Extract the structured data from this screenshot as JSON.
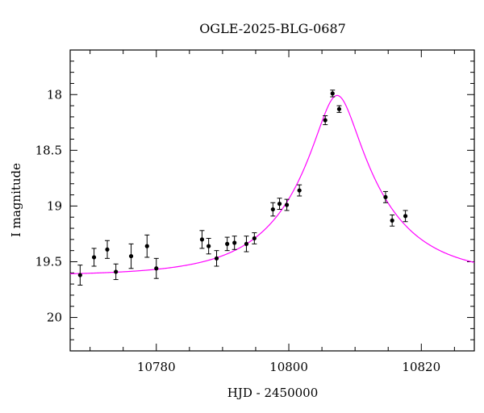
{
  "chart_data": {
    "type": "scatter",
    "title": "OGLE-2025-BLG-0687",
    "xlabel": "HJD - 2450000",
    "ylabel": "I magnitude",
    "xlim": [
      10767,
      10828
    ],
    "ylim": [
      20.3,
      17.6
    ],
    "y_inverted": true,
    "xticks": [
      10780,
      10800,
      10820
    ],
    "yticks": [
      18,
      18.5,
      19,
      19.5,
      20
    ],
    "ytick_labels": [
      "18",
      "18.5",
      "19",
      "19.5",
      "20"
    ],
    "grid": false,
    "series": [
      {
        "kind": "points_with_errorbars",
        "color": "#000000",
        "points": [
          {
            "x": 10768.5,
            "y": 19.62,
            "err": 0.09
          },
          {
            "x": 10770.6,
            "y": 19.46,
            "err": 0.08
          },
          {
            "x": 10772.6,
            "y": 19.39,
            "err": 0.08
          },
          {
            "x": 10773.9,
            "y": 19.59,
            "err": 0.07
          },
          {
            "x": 10776.2,
            "y": 19.45,
            "err": 0.11
          },
          {
            "x": 10778.6,
            "y": 19.36,
            "err": 0.1
          },
          {
            "x": 10780.0,
            "y": 19.56,
            "err": 0.09
          },
          {
            "x": 10786.9,
            "y": 19.3,
            "err": 0.08
          },
          {
            "x": 10787.9,
            "y": 19.36,
            "err": 0.07
          },
          {
            "x": 10789.1,
            "y": 19.47,
            "err": 0.07
          },
          {
            "x": 10790.7,
            "y": 19.34,
            "err": 0.06
          },
          {
            "x": 10791.8,
            "y": 19.33,
            "err": 0.06
          },
          {
            "x": 10793.6,
            "y": 19.34,
            "err": 0.07
          },
          {
            "x": 10794.8,
            "y": 19.29,
            "err": 0.05
          },
          {
            "x": 10797.6,
            "y": 19.03,
            "err": 0.06
          },
          {
            "x": 10798.6,
            "y": 18.98,
            "err": 0.05
          },
          {
            "x": 10799.7,
            "y": 18.99,
            "err": 0.05
          },
          {
            "x": 10801.6,
            "y": 18.86,
            "err": 0.05
          },
          {
            "x": 10805.5,
            "y": 18.23,
            "err": 0.04
          },
          {
            "x": 10806.6,
            "y": 17.99,
            "err": 0.03
          },
          {
            "x": 10807.6,
            "y": 18.13,
            "err": 0.03
          },
          {
            "x": 10814.6,
            "y": 18.92,
            "err": 0.05
          },
          {
            "x": 10815.6,
            "y": 19.13,
            "err": 0.05
          },
          {
            "x": 10817.6,
            "y": 19.09,
            "err": 0.05
          }
        ]
      },
      {
        "kind": "model_curve",
        "color": "#ff00ff",
        "model": {
          "t0": 10807.3,
          "u0": 0.23,
          "tE": 13.2,
          "baseline": 19.625
        }
      }
    ]
  }
}
